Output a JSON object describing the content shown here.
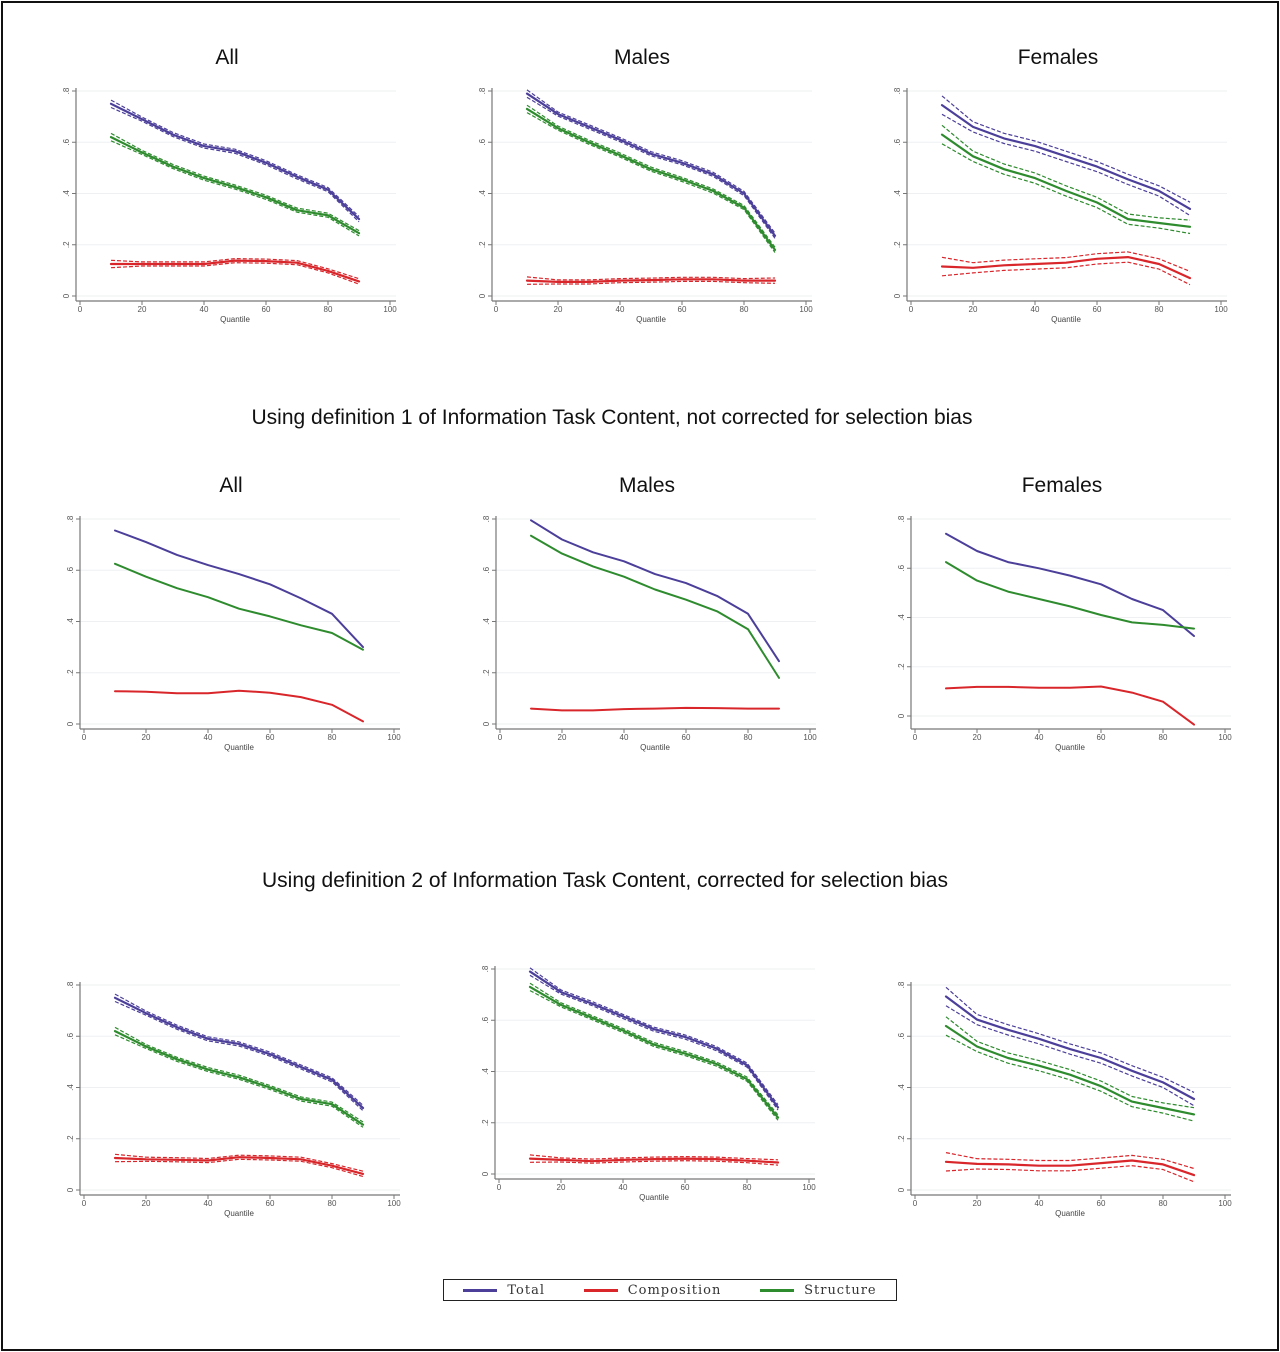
{
  "section_titles": {
    "def1": "Using definition 1 of Information Task Content, not corrected for selection bias",
    "def2": "Using definition 2 of Information Task Content, corrected for selection bias"
  },
  "panel_titles": {
    "row1": [
      "All",
      "Males",
      "Females"
    ],
    "row2": [
      "All",
      "Males",
      "Females"
    ]
  },
  "legend": [
    {
      "label": "Total",
      "color": "#4b3f9a"
    },
    {
      "label": "Composition",
      "color": "#d8262b"
    },
    {
      "label": "Structure",
      "color": "#2e8b2e"
    }
  ],
  "chart_data": [
    {
      "type": "line",
      "row": 1,
      "title": "All",
      "xlabel": "Quantile",
      "ylabel": "",
      "xlim": [
        0,
        100
      ],
      "ylim": [
        0,
        0.8
      ],
      "xticks": [
        "0",
        "20",
        "40",
        "60",
        "80",
        "100"
      ],
      "yticks": [
        "0",
        ".2",
        ".4",
        ".6",
        ".8"
      ],
      "confidence_bands": true,
      "band_width": 0.008,
      "x": [
        10,
        20,
        30,
        40,
        50,
        60,
        70,
        80,
        90
      ],
      "series": [
        {
          "name": "Total",
          "values": [
            0.75,
            0.69,
            0.63,
            0.585,
            0.565,
            0.52,
            0.465,
            0.415,
            0.3
          ]
        },
        {
          "name": "Composition",
          "values": [
            0.125,
            0.125,
            0.125,
            0.125,
            0.138,
            0.136,
            0.13,
            0.098,
            0.057
          ]
        },
        {
          "name": "Structure",
          "values": [
            0.62,
            0.56,
            0.505,
            0.46,
            0.425,
            0.385,
            0.335,
            0.315,
            0.245
          ]
        }
      ]
    },
    {
      "type": "line",
      "row": 1,
      "title": "Males",
      "xlabel": "Quantile",
      "ylabel": "",
      "xlim": [
        0,
        100
      ],
      "ylim": [
        0,
        0.8
      ],
      "xticks": [
        "0",
        "20",
        "40",
        "60",
        "80",
        "100"
      ],
      "yticks": [
        "0",
        ".2",
        ".4",
        ".6",
        ".8"
      ],
      "confidence_bands": true,
      "band_width": 0.008,
      "x": [
        10,
        20,
        30,
        40,
        50,
        60,
        70,
        80,
        90
      ],
      "series": [
        {
          "name": "Total",
          "values": [
            0.79,
            0.71,
            0.66,
            0.61,
            0.555,
            0.52,
            0.475,
            0.4,
            0.235
          ]
        },
        {
          "name": "Composition",
          "values": [
            0.06,
            0.055,
            0.055,
            0.06,
            0.062,
            0.065,
            0.065,
            0.06,
            0.06
          ]
        },
        {
          "name": "Structure",
          "values": [
            0.73,
            0.655,
            0.6,
            0.55,
            0.495,
            0.455,
            0.41,
            0.345,
            0.18
          ]
        }
      ]
    },
    {
      "type": "line",
      "row": 1,
      "title": "Females",
      "xlabel": "Quantile",
      "ylabel": "",
      "xlim": [
        0,
        100
      ],
      "ylim": [
        0,
        0.8
      ],
      "xticks": [
        "0",
        "20",
        "40",
        "60",
        "80",
        "100"
      ],
      "yticks": [
        "0",
        ".2",
        ".4",
        ".6",
        ".8"
      ],
      "confidence_bands": true,
      "band_width": 0.02,
      "x": [
        10,
        20,
        30,
        40,
        50,
        60,
        70,
        80,
        90
      ],
      "series": [
        {
          "name": "Total",
          "values": [
            0.745,
            0.66,
            0.615,
            0.585,
            0.545,
            0.505,
            0.455,
            0.41,
            0.34
          ]
        },
        {
          "name": "Composition",
          "values": [
            0.115,
            0.11,
            0.12,
            0.125,
            0.13,
            0.145,
            0.152,
            0.125,
            0.07
          ]
        },
        {
          "name": "Structure",
          "values": [
            0.63,
            0.545,
            0.495,
            0.46,
            0.41,
            0.365,
            0.3,
            0.285,
            0.27
          ]
        }
      ]
    },
    {
      "type": "line",
      "row": 2,
      "title": "All",
      "xlabel": "Quantile",
      "ylabel": "",
      "xlim": [
        0,
        100
      ],
      "ylim": [
        0,
        0.8
      ],
      "xticks": [
        "0",
        "20",
        "40",
        "60",
        "80",
        "100"
      ],
      "yticks": [
        "0",
        ".2",
        ".4",
        ".6",
        ".8"
      ],
      "confidence_bands": false,
      "x": [
        10,
        20,
        30,
        40,
        50,
        60,
        70,
        80,
        90
      ],
      "series": [
        {
          "name": "Total",
          "values": [
            0.755,
            0.71,
            0.66,
            0.62,
            0.585,
            0.545,
            0.49,
            0.43,
            0.3
          ]
        },
        {
          "name": "Composition",
          "values": [
            0.128,
            0.126,
            0.12,
            0.12,
            0.13,
            0.122,
            0.105,
            0.075,
            0.01
          ]
        },
        {
          "name": "Structure",
          "values": [
            0.625,
            0.575,
            0.53,
            0.495,
            0.45,
            0.42,
            0.385,
            0.355,
            0.29
          ]
        }
      ]
    },
    {
      "type": "line",
      "row": 2,
      "title": "Males",
      "xlabel": "Quantile",
      "ylabel": "",
      "xlim": [
        0,
        100
      ],
      "ylim": [
        0,
        0.8
      ],
      "xticks": [
        "0",
        "20",
        "40",
        "60",
        "80",
        "100"
      ],
      "yticks": [
        "0",
        ".2",
        ".4",
        ".6",
        ".8"
      ],
      "confidence_bands": false,
      "x": [
        10,
        20,
        30,
        40,
        50,
        60,
        70,
        80,
        90
      ],
      "series": [
        {
          "name": "Total",
          "values": [
            0.795,
            0.72,
            0.67,
            0.635,
            0.585,
            0.55,
            0.5,
            0.43,
            0.245
          ]
        },
        {
          "name": "Composition",
          "values": [
            0.06,
            0.053,
            0.053,
            0.058,
            0.06,
            0.063,
            0.062,
            0.06,
            0.06
          ]
        },
        {
          "name": "Structure",
          "values": [
            0.735,
            0.665,
            0.615,
            0.575,
            0.525,
            0.485,
            0.44,
            0.37,
            0.18
          ]
        }
      ]
    },
    {
      "type": "line",
      "row": 2,
      "title": "Females",
      "xlabel": "Quantile",
      "ylabel": "",
      "xlim": [
        0,
        100
      ],
      "ylim": [
        -0.05,
        0.8
      ],
      "xticks": [
        "0",
        "20",
        "40",
        "60",
        "80",
        "100"
      ],
      "yticks": [
        "0",
        ".2",
        ".4",
        ".6",
        ".8"
      ],
      "confidence_bands": false,
      "x": [
        10,
        20,
        30,
        40,
        50,
        60,
        70,
        80,
        90
      ],
      "series": [
        {
          "name": "Total",
          "values": [
            0.74,
            0.67,
            0.625,
            0.6,
            0.57,
            0.535,
            0.475,
            0.43,
            0.325
          ]
        },
        {
          "name": "Composition",
          "values": [
            0.112,
            0.118,
            0.118,
            0.115,
            0.115,
            0.12,
            0.095,
            0.058,
            -0.035
          ]
        },
        {
          "name": "Structure",
          "values": [
            0.625,
            0.55,
            0.505,
            0.475,
            0.445,
            0.41,
            0.38,
            0.37,
            0.355
          ]
        }
      ]
    },
    {
      "type": "line",
      "row": 3,
      "title": "",
      "xlabel": "Quantile",
      "ylabel": "",
      "xlim": [
        0,
        100
      ],
      "ylim": [
        0,
        0.8
      ],
      "xticks": [
        "0",
        "20",
        "40",
        "60",
        "80",
        "100"
      ],
      "yticks": [
        "0",
        ".2",
        ".4",
        ".6",
        ".8"
      ],
      "confidence_bands": true,
      "band_width": 0.008,
      "x": [
        10,
        20,
        30,
        40,
        50,
        60,
        70,
        80,
        90
      ],
      "series": [
        {
          "name": "Total",
          "values": [
            0.75,
            0.69,
            0.635,
            0.59,
            0.57,
            0.53,
            0.48,
            0.43,
            0.32
          ]
        },
        {
          "name": "Composition",
          "values": [
            0.125,
            0.12,
            0.118,
            0.115,
            0.128,
            0.125,
            0.12,
            0.095,
            0.063
          ]
        },
        {
          "name": "Structure",
          "values": [
            0.62,
            0.56,
            0.51,
            0.47,
            0.44,
            0.4,
            0.355,
            0.335,
            0.255
          ]
        }
      ]
    },
    {
      "type": "line",
      "row": 3,
      "title": "",
      "xlabel": "Quantile",
      "ylabel": "",
      "xlim": [
        0,
        100
      ],
      "ylim": [
        0,
        0.8
      ],
      "xticks": [
        "0",
        "20",
        "40",
        "60",
        "80",
        "100"
      ],
      "yticks": [
        "0",
        ".2",
        ".4",
        ".6",
        ".8"
      ],
      "confidence_bands": true,
      "band_width": 0.008,
      "x": [
        10,
        20,
        30,
        40,
        50,
        60,
        70,
        80,
        90
      ],
      "series": [
        {
          "name": "Total",
          "values": [
            0.79,
            0.71,
            0.665,
            0.615,
            0.565,
            0.535,
            0.49,
            0.425,
            0.26
          ]
        },
        {
          "name": "Composition",
          "values": [
            0.06,
            0.055,
            0.05,
            0.055,
            0.058,
            0.06,
            0.058,
            0.052,
            0.045
          ]
        },
        {
          "name": "Structure",
          "values": [
            0.73,
            0.66,
            0.61,
            0.56,
            0.505,
            0.47,
            0.43,
            0.37,
            0.22
          ]
        }
      ]
    },
    {
      "type": "line",
      "row": 3,
      "title": "",
      "xlabel": "Quantile",
      "ylabel": "",
      "xlim": [
        0,
        100
      ],
      "ylim": [
        0,
        0.8
      ],
      "xticks": [
        "0",
        "20",
        "40",
        "60",
        "80",
        "100"
      ],
      "yticks": [
        "0",
        ".2",
        ".4",
        ".6",
        ".8"
      ],
      "confidence_bands": true,
      "band_width": 0.02,
      "x": [
        10,
        20,
        30,
        40,
        50,
        60,
        70,
        80,
        90
      ],
      "series": [
        {
          "name": "Total",
          "values": [
            0.755,
            0.665,
            0.625,
            0.59,
            0.55,
            0.515,
            0.465,
            0.42,
            0.355
          ]
        },
        {
          "name": "Composition",
          "values": [
            0.11,
            0.102,
            0.1,
            0.095,
            0.095,
            0.105,
            0.115,
            0.1,
            0.058
          ]
        },
        {
          "name": "Structure",
          "values": [
            0.64,
            0.56,
            0.515,
            0.485,
            0.45,
            0.405,
            0.345,
            0.32,
            0.295
          ]
        }
      ]
    }
  ]
}
